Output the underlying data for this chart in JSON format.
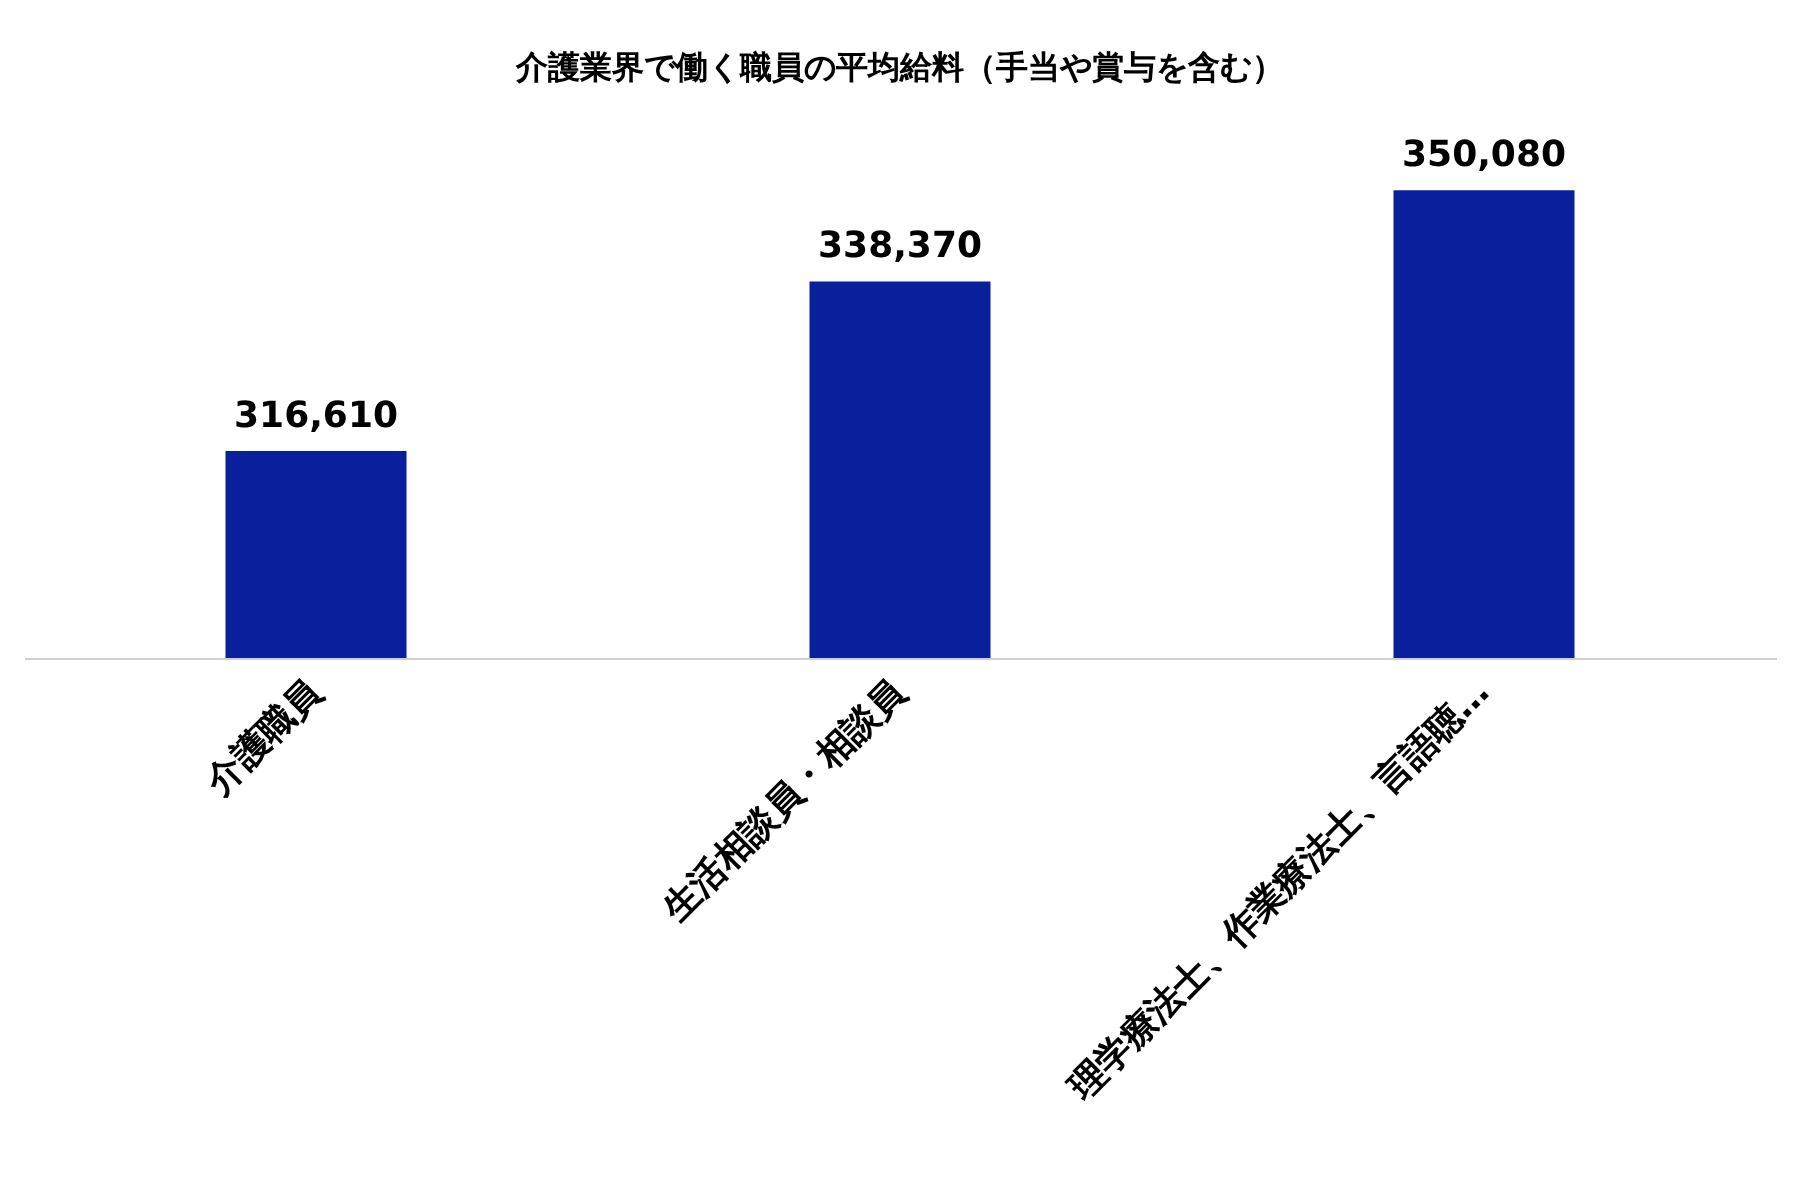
{
  "chart_data": {
    "type": "bar",
    "title": "介護業界で働く職員の平均給料（手当や賞与を含む）",
    "categories": [
      "介護職員",
      "生活相談員・相談員",
      "理学療法士、作業療法士、言語聴…"
    ],
    "values": [
      316610,
      338370,
      350080
    ],
    "color": "#0a1f9c",
    "value_labels": [
      "316,610",
      "338,370",
      "350,080"
    ]
  }
}
